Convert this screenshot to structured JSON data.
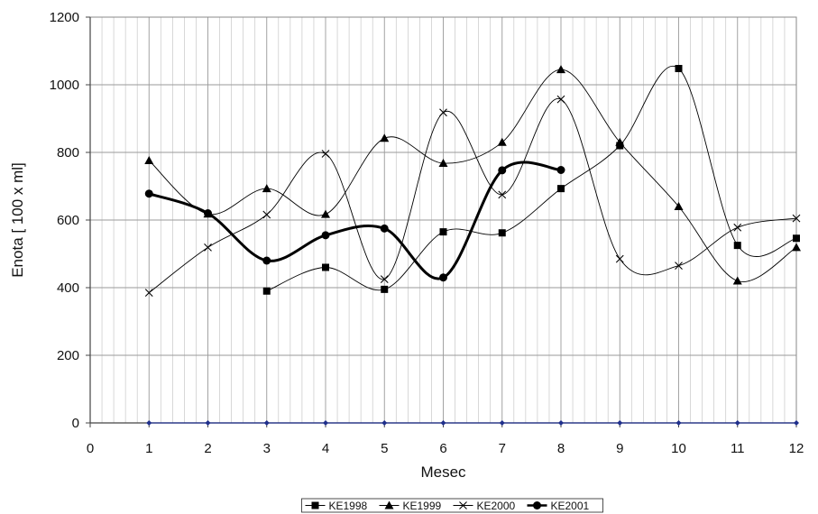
{
  "chart_data": {
    "type": "line",
    "xlabel": "Mesec",
    "ylabel": "Enota [ 100  x  ml]",
    "xlim": [
      0,
      12
    ],
    "ylim": [
      0,
      1200
    ],
    "x_ticks": [
      0,
      1,
      2,
      3,
      4,
      5,
      6,
      7,
      8,
      9,
      10,
      11,
      12
    ],
    "y_ticks": [
      0,
      200,
      400,
      600,
      800,
      1000,
      1200
    ],
    "grid": "major and minor vertical, major horizontal",
    "legend_position": "bottom",
    "series": [
      {
        "name": "KE1998",
        "marker": "square",
        "color": "#000000",
        "x": [
          3,
          4,
          5,
          6,
          7,
          8,
          9,
          10,
          11,
          12
        ],
        "values": [
          390,
          460,
          395,
          565,
          562,
          693,
          820,
          1048,
          525,
          546
        ]
      },
      {
        "name": "KE1999",
        "marker": "triangle",
        "color": "#000000",
        "x": [
          1,
          2,
          3,
          4,
          5,
          6,
          7,
          8,
          9,
          10,
          11,
          12
        ],
        "values": [
          776,
          618,
          693,
          617,
          842,
          768,
          830,
          1045,
          830,
          640,
          420,
          519
        ]
      },
      {
        "name": "KE2000",
        "marker": "x",
        "color": "#000000",
        "x": [
          1,
          2,
          3,
          4,
          5,
          6,
          7,
          8,
          9,
          10,
          11,
          12
        ],
        "values": [
          385,
          519,
          616,
          796,
          425,
          918,
          675,
          957,
          485,
          465,
          578,
          605
        ]
      },
      {
        "name": "KE2001",
        "marker": "circle",
        "color": "#000000",
        "x": [
          1,
          2,
          3,
          4,
          5,
          6,
          7,
          8
        ],
        "values": [
          678,
          620,
          480,
          555,
          575,
          430,
          747,
          748
        ]
      },
      {
        "name": "",
        "marker": "diamond",
        "color": "#1f2f8c",
        "x": [
          1,
          2,
          3,
          4,
          5,
          6,
          7,
          8,
          9,
          10,
          11,
          12
        ],
        "values": [
          0,
          0,
          0,
          0,
          0,
          0,
          0,
          0,
          0,
          0,
          0,
          0
        ]
      }
    ]
  }
}
